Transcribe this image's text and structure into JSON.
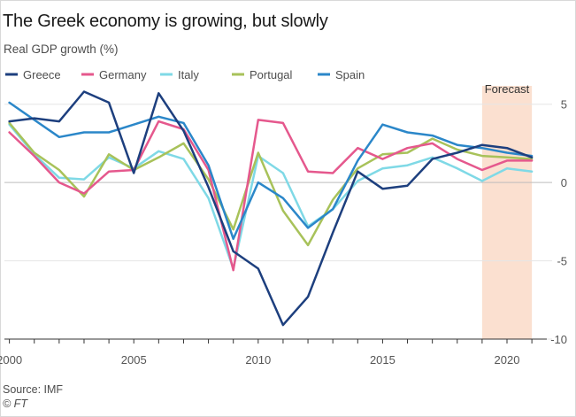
{
  "chart_data": {
    "type": "line",
    "title": "The Greek economy is growing, but slowly",
    "subtitle": "Real GDP growth (%)",
    "source": "Source: IMF",
    "copyright": "© FT",
    "forecast_label": "Forecast",
    "forecast_range": [
      2019,
      2021
    ],
    "xlim": [
      1999.8,
      2021.6
    ],
    "ylim": [
      -10,
      6
    ],
    "x_ticks": [
      2000,
      2005,
      2010,
      2015,
      2020
    ],
    "y_ticks": [
      5,
      0,
      -5,
      -10
    ],
    "x": [
      2000,
      2001,
      2002,
      2003,
      2004,
      2005,
      2006,
      2007,
      2008,
      2009,
      2010,
      2011,
      2012,
      2013,
      2014,
      2015,
      2016,
      2017,
      2018,
      2019,
      2020,
      2021
    ],
    "series": [
      {
        "name": "Italy",
        "color": "#7fd9e6",
        "values": [
          3.7,
          1.8,
          0.3,
          0.2,
          1.6,
          0.9,
          2.0,
          1.5,
          -1.0,
          -5.5,
          1.7,
          0.6,
          -2.8,
          -1.7,
          0.1,
          0.9,
          1.1,
          1.6,
          0.9,
          0.1,
          0.9,
          0.7
        ]
      },
      {
        "name": "Portugal",
        "color": "#a8c25a",
        "values": [
          3.8,
          1.9,
          0.8,
          -0.9,
          1.8,
          0.8,
          1.6,
          2.5,
          0.2,
          -3.0,
          1.9,
          -1.8,
          -4.0,
          -1.1,
          0.9,
          1.8,
          1.9,
          2.8,
          2.1,
          1.7,
          1.6,
          1.5
        ]
      },
      {
        "name": "Germany",
        "color": "#e5588d",
        "values": [
          3.2,
          1.7,
          0.0,
          -0.7,
          0.7,
          0.8,
          3.9,
          3.4,
          0.8,
          -5.6,
          4.0,
          3.8,
          0.7,
          0.6,
          2.2,
          1.5,
          2.2,
          2.5,
          1.5,
          0.8,
          1.4,
          1.4
        ]
      },
      {
        "name": "Spain",
        "color": "#2b87c9",
        "values": [
          5.1,
          4.0,
          2.9,
          3.2,
          3.2,
          3.7,
          4.2,
          3.8,
          1.1,
          -3.6,
          0.0,
          -1.0,
          -2.9,
          -1.7,
          1.4,
          3.7,
          3.2,
          3.0,
          2.4,
          2.2,
          1.9,
          1.7
        ]
      },
      {
        "name": "Greece",
        "color": "#1d3f7e",
        "values": [
          3.9,
          4.1,
          3.9,
          5.8,
          5.1,
          0.6,
          5.7,
          3.3,
          -0.3,
          -4.4,
          -5.5,
          -9.1,
          -7.3,
          -3.2,
          0.7,
          -0.4,
          -0.2,
          1.5,
          1.9,
          2.4,
          2.2,
          1.6
        ]
      }
    ],
    "legend_order": [
      "Greece",
      "Germany",
      "Italy",
      "Portugal",
      "Spain"
    ]
  },
  "colors": {
    "forecast_fill": "#fbe0d0",
    "grid": "#e6e6e6",
    "zero_line": "#bdbdbd",
    "axis": "#333333"
  }
}
